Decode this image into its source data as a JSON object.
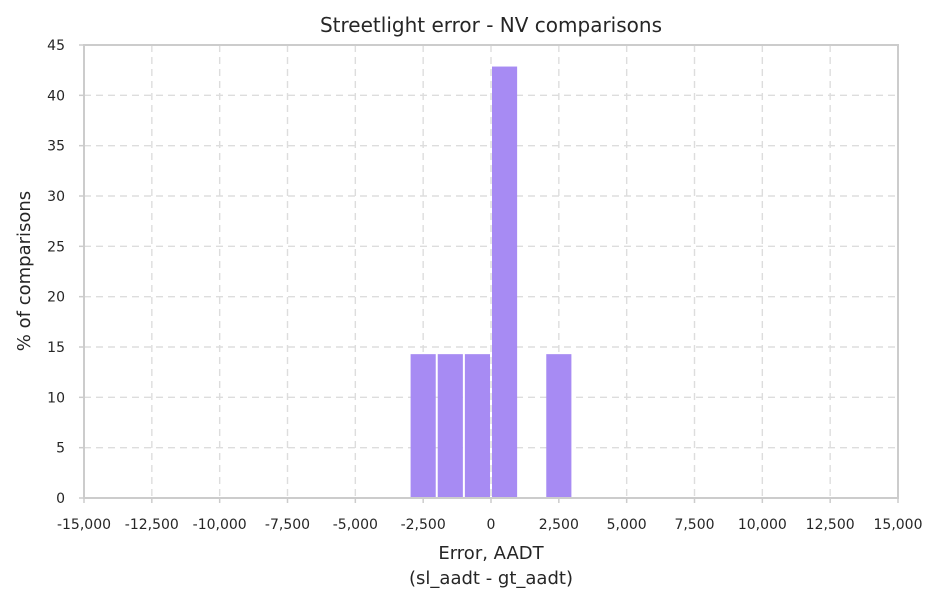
{
  "chart_data": {
    "type": "bar",
    "title": "Streetlight error - NV comparisons",
    "xlabel_lines": [
      "Error, AADT",
      "(sl_aadt - gt_aadt)"
    ],
    "ylabel": "% of comparisons",
    "xlim": [
      -15000,
      15000
    ],
    "ylim": [
      0,
      45
    ],
    "grid": true,
    "bar_color": "#a78bf3",
    "x_ticks": [
      -15000,
      -12500,
      -10000,
      -7500,
      -5000,
      -2500,
      0,
      2500,
      5000,
      7500,
      10000,
      12500,
      15000
    ],
    "x_tick_labels": [
      "-15,000",
      "-12,500",
      "-10,000",
      "-7,500",
      "-5,000",
      "-2,500",
      "0",
      "2,500",
      "5,000",
      "7,500",
      "10,000",
      "12,500",
      "15,000"
    ],
    "y_ticks": [
      0,
      5,
      10,
      15,
      20,
      25,
      30,
      35,
      40,
      45
    ],
    "y_tick_labels": [
      "0",
      "5",
      "10",
      "15",
      "20",
      "25",
      "30",
      "35",
      "40",
      "45"
    ],
    "bins": [
      {
        "x0": -3000,
        "x1": -2000,
        "value": 14.29
      },
      {
        "x0": -2000,
        "x1": -1000,
        "value": 14.29
      },
      {
        "x0": -1000,
        "x1": 0,
        "value": 14.29
      },
      {
        "x0": 0,
        "x1": 1000,
        "value": 42.86
      },
      {
        "x0": 2000,
        "x1": 3000,
        "value": 14.29
      }
    ]
  }
}
